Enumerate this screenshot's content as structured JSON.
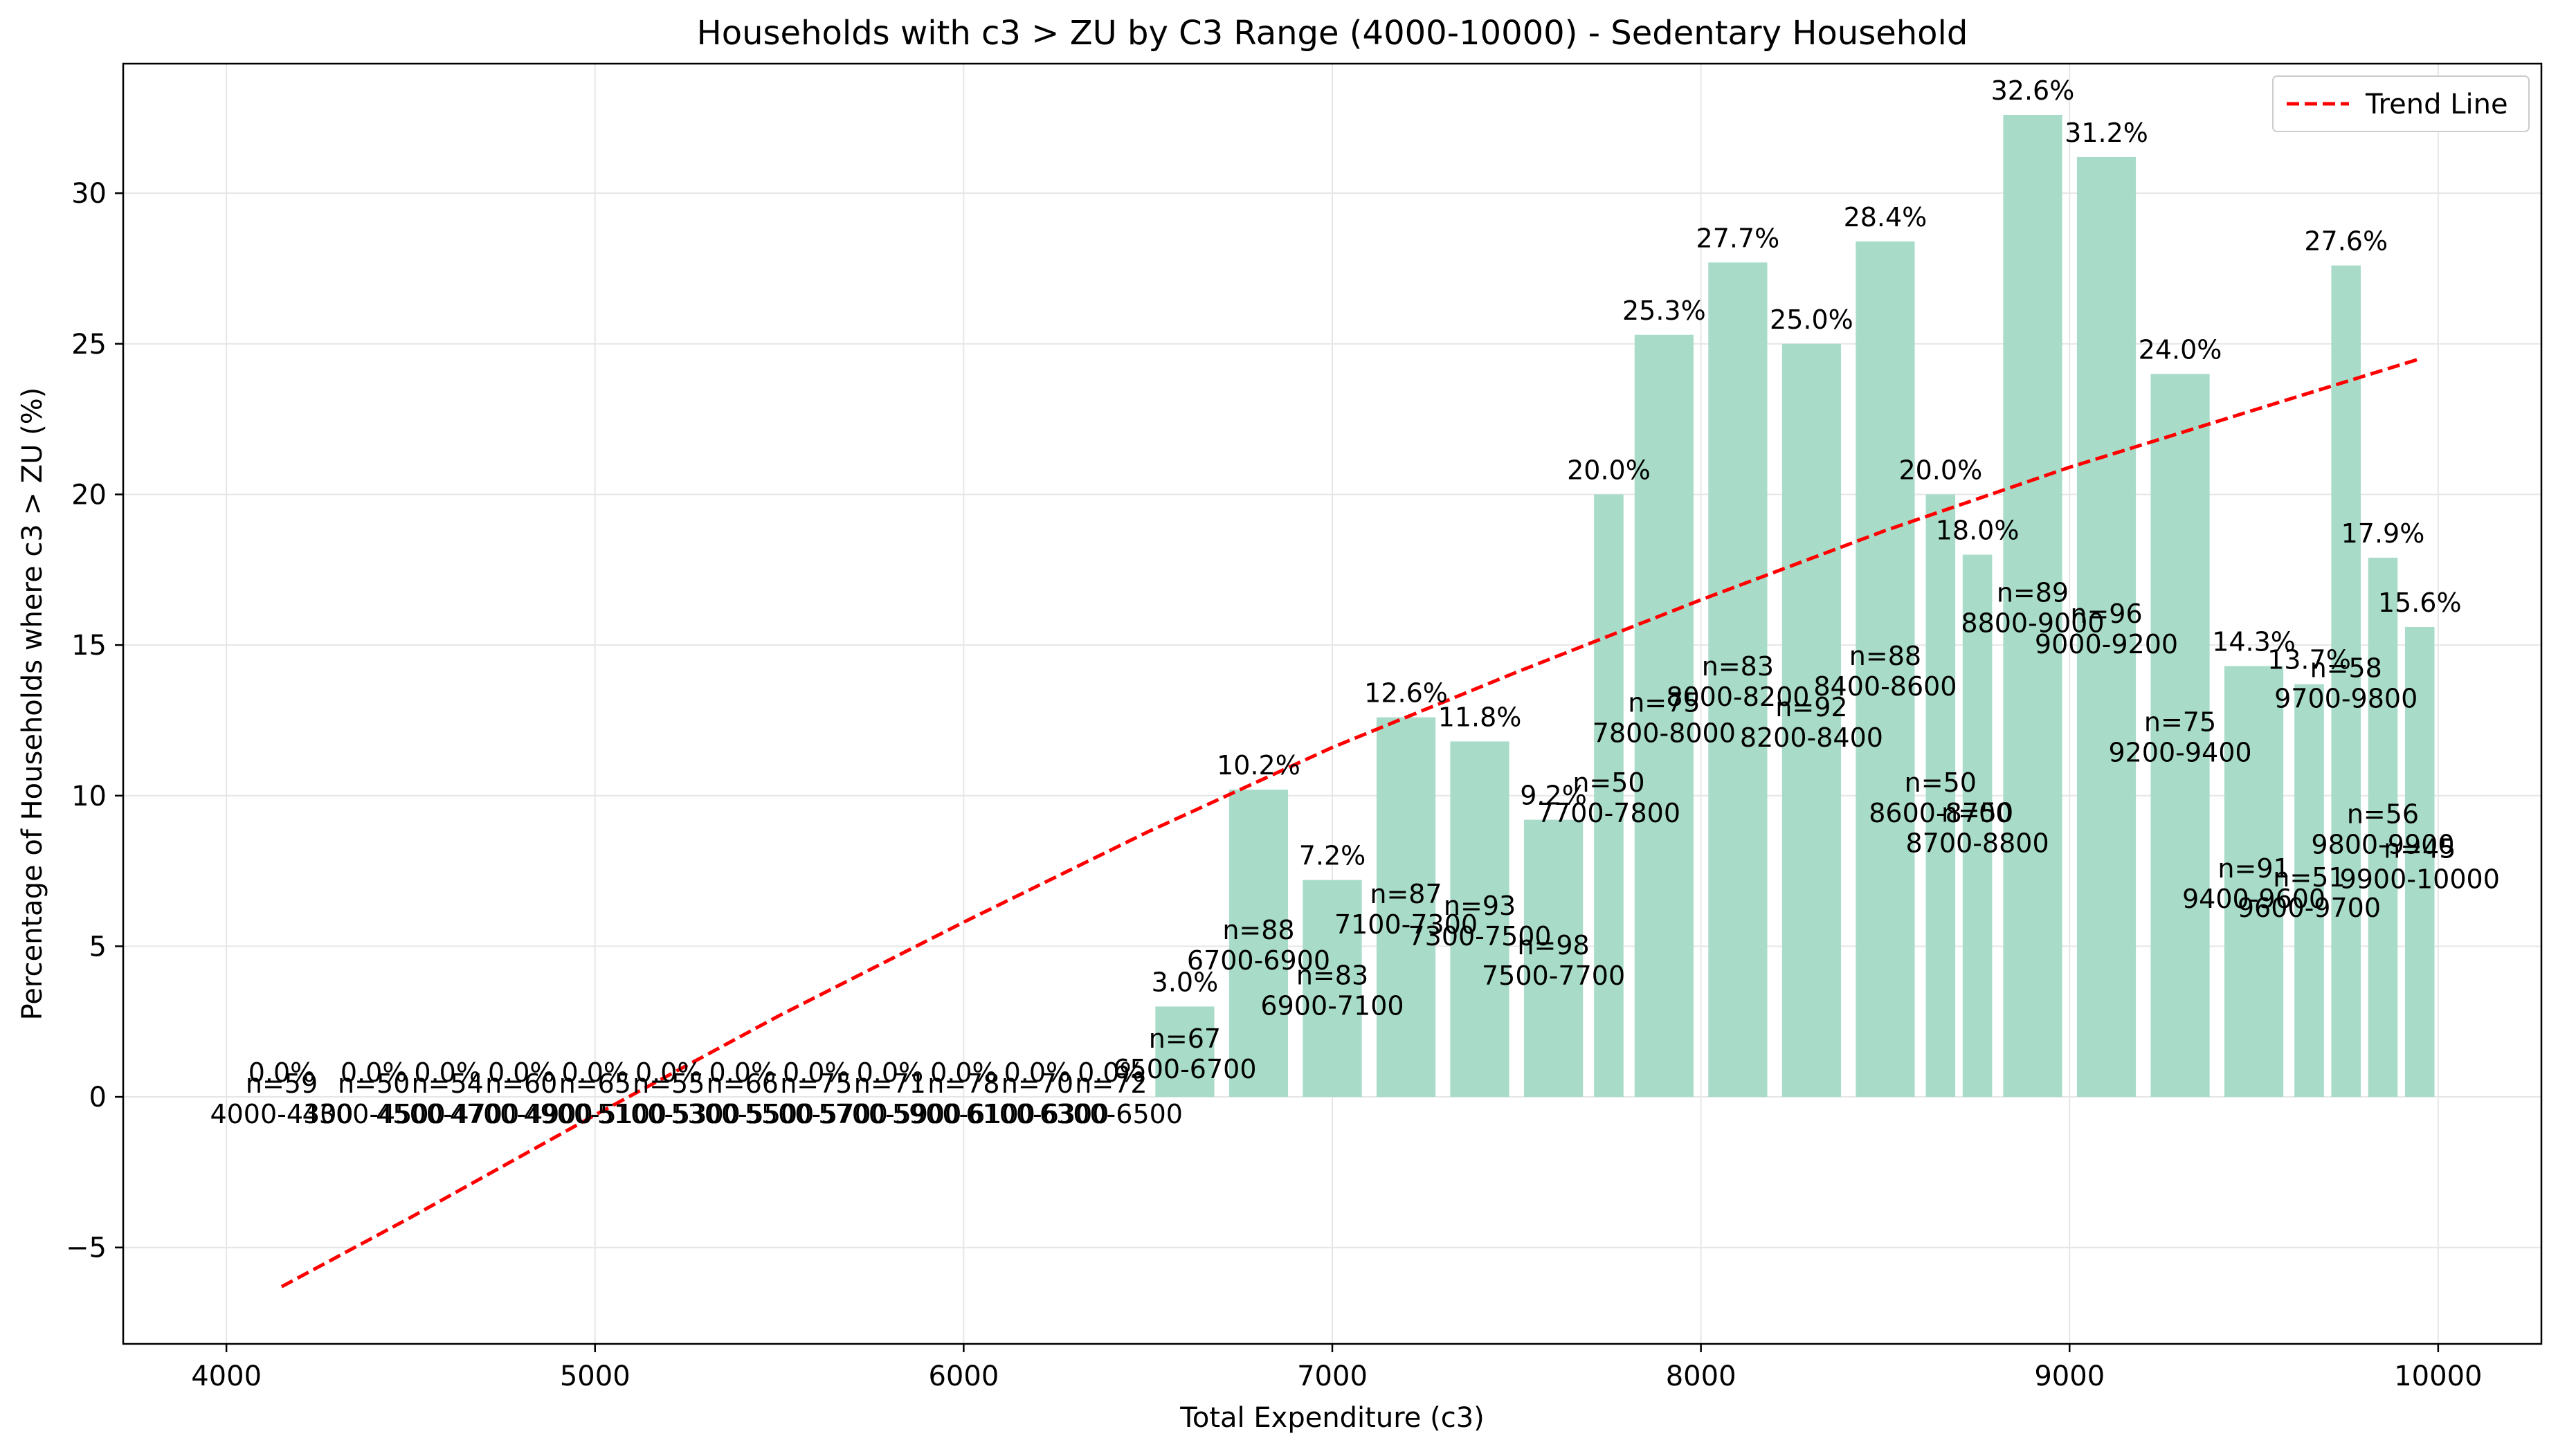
{
  "chart_data": {
    "type": "bar",
    "title": "Households with c3 > ZU by C3 Range (4000-10000) - Sedentary Household",
    "xlabel": "Total Expenditure (c3)",
    "ylabel": "Percentage of Households where c3 > ZU (%)",
    "xlim": [
      3720,
      10280
    ],
    "ylim": [
      -8.2,
      34.3
    ],
    "xticks": [
      4000,
      5000,
      6000,
      7000,
      8000,
      9000,
      10000
    ],
    "yticks": [
      -5,
      0,
      5,
      10,
      15,
      20,
      25,
      30
    ],
    "grid": true,
    "legend": {
      "position": "top-right",
      "entries": [
        "Trend Line"
      ]
    },
    "colors": {
      "bar": "#a8dcc9",
      "trend": "#ff0000",
      "grid": "#e6e6e6"
    },
    "bars": [
      {
        "range": "4000-4300",
        "start": 4000,
        "end": 4300,
        "pct": 0.0,
        "pct_label": "0.0%",
        "n_label": "n=59"
      },
      {
        "range": "4300-4500",
        "start": 4300,
        "end": 4500,
        "pct": 0.0,
        "pct_label": "0.0%",
        "n_label": "n=50"
      },
      {
        "range": "4500-4700",
        "start": 4500,
        "end": 4700,
        "pct": 0.0,
        "pct_label": "0.0%",
        "n_label": "n=54"
      },
      {
        "range": "4700-4900",
        "start": 4700,
        "end": 4900,
        "pct": 0.0,
        "pct_label": "0.0%",
        "n_label": "n=60"
      },
      {
        "range": "4900-5100",
        "start": 4900,
        "end": 5100,
        "pct": 0.0,
        "pct_label": "0.0%",
        "n_label": "n=65"
      },
      {
        "range": "5100-5300",
        "start": 5100,
        "end": 5300,
        "pct": 0.0,
        "pct_label": "0.0%",
        "n_label": "n=55"
      },
      {
        "range": "5300-5500",
        "start": 5300,
        "end": 5500,
        "pct": 0.0,
        "pct_label": "0.0%",
        "n_label": "n=66"
      },
      {
        "range": "5500-5700",
        "start": 5500,
        "end": 5700,
        "pct": 0.0,
        "pct_label": "0.0%",
        "n_label": "n=75"
      },
      {
        "range": "5700-5900",
        "start": 5700,
        "end": 5900,
        "pct": 0.0,
        "pct_label": "0.0%",
        "n_label": "n=71"
      },
      {
        "range": "5900-6100",
        "start": 5900,
        "end": 6100,
        "pct": 0.0,
        "pct_label": "0.0%",
        "n_label": "n=78"
      },
      {
        "range": "6100-6300",
        "start": 6100,
        "end": 6300,
        "pct": 0.0,
        "pct_label": "0.0%",
        "n_label": "n=70"
      },
      {
        "range": "6300-6500",
        "start": 6300,
        "end": 6500,
        "pct": 0.0,
        "pct_label": "0.0%",
        "n_label": "n=72"
      },
      {
        "range": "6500-6700",
        "start": 6500,
        "end": 6700,
        "pct": 3.0,
        "pct_label": "3.0%",
        "n_label": "n=67"
      },
      {
        "range": "6700-6900",
        "start": 6700,
        "end": 6900,
        "pct": 10.2,
        "pct_label": "10.2%",
        "n_label": "n=88"
      },
      {
        "range": "6900-7100",
        "start": 6900,
        "end": 7100,
        "pct": 7.2,
        "pct_label": "7.2%",
        "n_label": "n=83"
      },
      {
        "range": "7100-7300",
        "start": 7100,
        "end": 7300,
        "pct": 12.6,
        "pct_label": "12.6%",
        "n_label": "n=87"
      },
      {
        "range": "7300-7500",
        "start": 7300,
        "end": 7500,
        "pct": 11.8,
        "pct_label": "11.8%",
        "n_label": "n=93"
      },
      {
        "range": "7500-7700",
        "start": 7500,
        "end": 7700,
        "pct": 9.2,
        "pct_label": "9.2%",
        "n_label": "n=98"
      },
      {
        "range": "7700-7800",
        "start": 7700,
        "end": 7800,
        "pct": 20.0,
        "pct_label": "20.0%",
        "n_label": "n=50"
      },
      {
        "range": "7800-8000",
        "start": 7800,
        "end": 8000,
        "pct": 25.3,
        "pct_label": "25.3%",
        "n_label": "n=75"
      },
      {
        "range": "8000-8200",
        "start": 8000,
        "end": 8200,
        "pct": 27.7,
        "pct_label": "27.7%",
        "n_label": "n=83"
      },
      {
        "range": "8200-8400",
        "start": 8200,
        "end": 8400,
        "pct": 25.0,
        "pct_label": "25.0%",
        "n_label": "n=92"
      },
      {
        "range": "8400-8600",
        "start": 8400,
        "end": 8600,
        "pct": 28.4,
        "pct_label": "28.4%",
        "n_label": "n=88"
      },
      {
        "range": "8600-8700",
        "start": 8600,
        "end": 8700,
        "pct": 20.0,
        "pct_label": "20.0%",
        "n_label": "n=50"
      },
      {
        "range": "8700-8800",
        "start": 8700,
        "end": 8800,
        "pct": 18.0,
        "pct_label": "18.0%",
        "n_label": "n=50"
      },
      {
        "range": "8800-9000",
        "start": 8800,
        "end": 9000,
        "pct": 32.6,
        "pct_label": "32.6%",
        "n_label": "n=89"
      },
      {
        "range": "9000-9200",
        "start": 9000,
        "end": 9200,
        "pct": 31.2,
        "pct_label": "31.2%",
        "n_label": "n=96"
      },
      {
        "range": "9200-9400",
        "start": 9200,
        "end": 9400,
        "pct": 24.0,
        "pct_label": "24.0%",
        "n_label": "n=75"
      },
      {
        "range": "9400-9600",
        "start": 9400,
        "end": 9600,
        "pct": 14.3,
        "pct_label": "14.3%",
        "n_label": "n=91"
      },
      {
        "range": "9600-9700",
        "start": 9600,
        "end": 9700,
        "pct": 13.7,
        "pct_label": "13.7%",
        "n_label": "n=51"
      },
      {
        "range": "9700-9800",
        "start": 9700,
        "end": 9800,
        "pct": 27.6,
        "pct_label": "27.6%",
        "n_label": "n=58"
      },
      {
        "range": "9800-9900",
        "start": 9800,
        "end": 9900,
        "pct": 17.9,
        "pct_label": "17.9%",
        "n_label": "n=56"
      },
      {
        "range": "9900-10000",
        "start": 9900,
        "end": 10000,
        "pct": 15.6,
        "pct_label": "15.6%",
        "n_label": "n=45"
      }
    ],
    "trend_line": {
      "name": "Trend Line",
      "x": [
        4150,
        4500,
        5000,
        5500,
        6000,
        6500,
        7000,
        7500,
        8000,
        8500,
        9000,
        9500,
        9950
      ],
      "y": [
        -6.3,
        -4.0,
        -0.6,
        2.7,
        5.8,
        8.8,
        11.6,
        14.1,
        16.5,
        18.8,
        20.9,
        22.8,
        24.5
      ]
    }
  }
}
